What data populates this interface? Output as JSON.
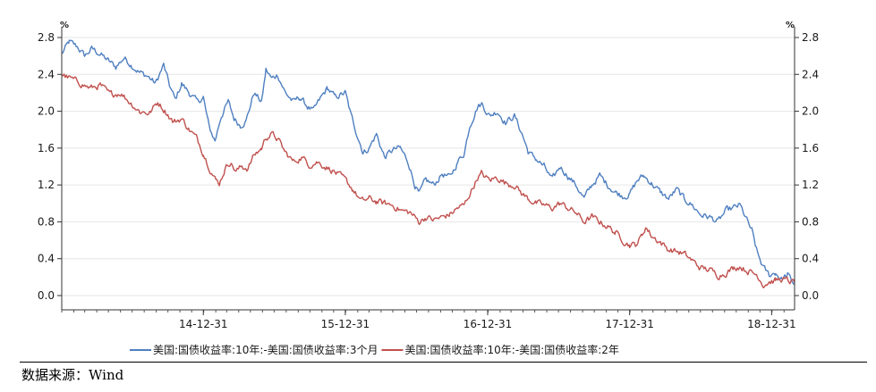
{
  "chart_data": {
    "type": "line",
    "y_unit_left": "%",
    "y_unit_right": "%",
    "ylim": [
      0.0,
      2.8
    ],
    "yticks": [
      "0.0",
      "0.4",
      "0.8",
      "1.2",
      "1.6",
      "2.0",
      "2.4",
      "2.8"
    ],
    "ytick_values": [
      0.0,
      0.4,
      0.8,
      1.2,
      1.6,
      2.0,
      2.4,
      2.8
    ],
    "xlim": [
      "2014-01-01",
      "2019-02-28"
    ],
    "xticks": [
      "14-12-31",
      "15-12-31",
      "16-12-31",
      "17-12-31",
      "18-12-31"
    ],
    "xtick_dates": [
      "2014-12-31",
      "2015-12-31",
      "2016-12-31",
      "2017-12-31",
      "2018-12-31"
    ],
    "grid": true,
    "legend_position": "bottom",
    "series": [
      {
        "name": "美国:国债收益率:10年:-美国:国债收益率:3个月",
        "color": "#4f7fc0",
        "points": [
          [
            "2014-01-01",
            2.62
          ],
          [
            "2014-01-20",
            2.75
          ],
          [
            "2014-02-10",
            2.7
          ],
          [
            "2014-03-01",
            2.6
          ],
          [
            "2014-03-20",
            2.68
          ],
          [
            "2014-04-10",
            2.62
          ],
          [
            "2014-04-30",
            2.55
          ],
          [
            "2014-05-20",
            2.48
          ],
          [
            "2014-06-10",
            2.58
          ],
          [
            "2014-06-30",
            2.5
          ],
          [
            "2014-07-20",
            2.42
          ],
          [
            "2014-08-10",
            2.38
          ],
          [
            "2014-08-30",
            2.3
          ],
          [
            "2014-09-20",
            2.5
          ],
          [
            "2014-10-05",
            2.28
          ],
          [
            "2014-10-20",
            2.12
          ],
          [
            "2014-11-05",
            2.3
          ],
          [
            "2014-11-25",
            2.2
          ],
          [
            "2014-12-15",
            2.1
          ],
          [
            "2014-12-31",
            2.15
          ],
          [
            "2015-01-15",
            1.82
          ],
          [
            "2015-01-30",
            1.68
          ],
          [
            "2015-02-15",
            1.95
          ],
          [
            "2015-03-05",
            2.1
          ],
          [
            "2015-03-20",
            1.92
          ],
          [
            "2015-04-05",
            1.85
          ],
          [
            "2015-04-20",
            1.9
          ],
          [
            "2015-05-10",
            2.2
          ],
          [
            "2015-05-30",
            2.1
          ],
          [
            "2015-06-10",
            2.45
          ],
          [
            "2015-06-25",
            2.35
          ],
          [
            "2015-07-10",
            2.4
          ],
          [
            "2015-07-30",
            2.2
          ],
          [
            "2015-08-20",
            2.1
          ],
          [
            "2015-09-05",
            2.15
          ],
          [
            "2015-09-25",
            2.05
          ],
          [
            "2015-10-10",
            2.0
          ],
          [
            "2015-10-30",
            2.15
          ],
          [
            "2015-11-15",
            2.25
          ],
          [
            "2015-12-05",
            2.15
          ],
          [
            "2015-12-31",
            2.2
          ],
          [
            "2016-01-15",
            1.95
          ],
          [
            "2016-02-05",
            1.68
          ],
          [
            "2016-02-15",
            1.55
          ],
          [
            "2016-03-01",
            1.6
          ],
          [
            "2016-03-20",
            1.75
          ],
          [
            "2016-04-10",
            1.5
          ],
          [
            "2016-05-01",
            1.58
          ],
          [
            "2016-05-20",
            1.6
          ],
          [
            "2016-06-10",
            1.45
          ],
          [
            "2016-06-27",
            1.2
          ],
          [
            "2016-07-08",
            1.1
          ],
          [
            "2016-07-25",
            1.25
          ],
          [
            "2016-08-15",
            1.2
          ],
          [
            "2016-09-05",
            1.32
          ],
          [
            "2016-09-25",
            1.28
          ],
          [
            "2016-10-15",
            1.45
          ],
          [
            "2016-11-01",
            1.55
          ],
          [
            "2016-11-15",
            1.85
          ],
          [
            "2016-12-05",
            2.05
          ],
          [
            "2016-12-16",
            2.08
          ],
          [
            "2017-01-05",
            1.95
          ],
          [
            "2017-01-25",
            2.0
          ],
          [
            "2017-02-15",
            1.88
          ],
          [
            "2017-03-10",
            1.95
          ],
          [
            "2017-03-30",
            1.75
          ],
          [
            "2017-04-15",
            1.55
          ],
          [
            "2017-05-05",
            1.48
          ],
          [
            "2017-05-25",
            1.4
          ],
          [
            "2017-06-15",
            1.25
          ],
          [
            "2017-07-05",
            1.4
          ],
          [
            "2017-07-25",
            1.3
          ],
          [
            "2017-08-15",
            1.2
          ],
          [
            "2017-09-05",
            1.05
          ],
          [
            "2017-09-25",
            1.2
          ],
          [
            "2017-10-15",
            1.3
          ],
          [
            "2017-11-05",
            1.2
          ],
          [
            "2017-11-25",
            1.12
          ],
          [
            "2017-12-15",
            1.08
          ],
          [
            "2017-12-31",
            1.1
          ],
          [
            "2018-01-20",
            1.25
          ],
          [
            "2018-02-05",
            1.3
          ],
          [
            "2018-02-25",
            1.22
          ],
          [
            "2018-03-20",
            1.12
          ],
          [
            "2018-04-10",
            1.05
          ],
          [
            "2018-05-01",
            1.15
          ],
          [
            "2018-05-20",
            1.05
          ],
          [
            "2018-06-10",
            0.98
          ],
          [
            "2018-07-01",
            0.88
          ],
          [
            "2018-07-25",
            0.85
          ],
          [
            "2018-08-15",
            0.8
          ],
          [
            "2018-09-05",
            0.92
          ],
          [
            "2018-09-25",
            0.95
          ],
          [
            "2018-10-10",
            0.98
          ],
          [
            "2018-10-25",
            0.85
          ],
          [
            "2018-11-10",
            0.7
          ],
          [
            "2018-11-25",
            0.45
          ],
          [
            "2018-12-10",
            0.3
          ],
          [
            "2018-12-25",
            0.22
          ],
          [
            "2019-01-10",
            0.25
          ],
          [
            "2019-01-25",
            0.18
          ],
          [
            "2019-02-10",
            0.22
          ],
          [
            "2019-02-28",
            0.12
          ]
        ]
      },
      {
        "name": "美国:国债收益率:10年:-美国:国债收益率:2年",
        "color": "#c0504d",
        "points": [
          [
            "2014-01-01",
            2.4
          ],
          [
            "2014-01-25",
            2.35
          ],
          [
            "2014-02-20",
            2.3
          ],
          [
            "2014-03-15",
            2.25
          ],
          [
            "2014-04-10",
            2.28
          ],
          [
            "2014-05-05",
            2.18
          ],
          [
            "2014-06-01",
            2.2
          ],
          [
            "2014-06-25",
            2.1
          ],
          [
            "2014-07-20",
            2.0
          ],
          [
            "2014-08-15",
            1.98
          ],
          [
            "2014-09-05",
            2.1
          ],
          [
            "2014-09-25",
            2.0
          ],
          [
            "2014-10-15",
            1.88
          ],
          [
            "2014-11-05",
            1.92
          ],
          [
            "2014-11-25",
            1.8
          ],
          [
            "2014-12-15",
            1.7
          ],
          [
            "2014-12-31",
            1.55
          ],
          [
            "2015-01-15",
            1.4
          ],
          [
            "2015-02-01",
            1.25
          ],
          [
            "2015-02-10",
            1.22
          ],
          [
            "2015-02-25",
            1.38
          ],
          [
            "2015-03-10",
            1.45
          ],
          [
            "2015-03-25",
            1.35
          ],
          [
            "2015-04-10",
            1.4
          ],
          [
            "2015-04-25",
            1.38
          ],
          [
            "2015-05-10",
            1.52
          ],
          [
            "2015-05-30",
            1.6
          ],
          [
            "2015-06-10",
            1.72
          ],
          [
            "2015-06-25",
            1.75
          ],
          [
            "2015-07-10",
            1.7
          ],
          [
            "2015-07-30",
            1.55
          ],
          [
            "2015-08-20",
            1.45
          ],
          [
            "2015-09-10",
            1.5
          ],
          [
            "2015-09-30",
            1.42
          ],
          [
            "2015-10-20",
            1.45
          ],
          [
            "2015-11-10",
            1.4
          ],
          [
            "2015-12-01",
            1.35
          ],
          [
            "2015-12-31",
            1.25
          ],
          [
            "2016-01-20",
            1.15
          ],
          [
            "2016-02-10",
            1.02
          ],
          [
            "2016-03-01",
            1.05
          ],
          [
            "2016-03-20",
            1.02
          ],
          [
            "2016-04-10",
            1.0
          ],
          [
            "2016-05-01",
            0.98
          ],
          [
            "2016-05-25",
            0.92
          ],
          [
            "2016-06-15",
            0.9
          ],
          [
            "2016-07-08",
            0.8
          ],
          [
            "2016-07-25",
            0.85
          ],
          [
            "2016-08-15",
            0.82
          ],
          [
            "2016-09-05",
            0.85
          ],
          [
            "2016-09-25",
            0.88
          ],
          [
            "2016-10-15",
            0.95
          ],
          [
            "2016-11-01",
            0.98
          ],
          [
            "2016-11-20",
            1.15
          ],
          [
            "2016-12-05",
            1.28
          ],
          [
            "2016-12-15",
            1.32
          ],
          [
            "2017-01-05",
            1.25
          ],
          [
            "2017-01-25",
            1.28
          ],
          [
            "2017-02-15",
            1.22
          ],
          [
            "2017-03-10",
            1.2
          ],
          [
            "2017-03-30",
            1.1
          ],
          [
            "2017-04-15",
            1.05
          ],
          [
            "2017-05-05",
            1.0
          ],
          [
            "2017-05-25",
            0.98
          ],
          [
            "2017-06-15",
            0.95
          ],
          [
            "2017-07-05",
            1.0
          ],
          [
            "2017-07-25",
            0.95
          ],
          [
            "2017-08-15",
            0.9
          ],
          [
            "2017-09-05",
            0.8
          ],
          [
            "2017-09-25",
            0.85
          ],
          [
            "2017-10-15",
            0.8
          ],
          [
            "2017-11-05",
            0.75
          ],
          [
            "2017-11-25",
            0.68
          ],
          [
            "2017-12-15",
            0.6
          ],
          [
            "2017-12-31",
            0.55
          ],
          [
            "2018-01-15",
            0.55
          ],
          [
            "2018-02-01",
            0.65
          ],
          [
            "2018-02-10",
            0.75
          ],
          [
            "2018-02-25",
            0.65
          ],
          [
            "2018-03-20",
            0.58
          ],
          [
            "2018-04-10",
            0.5
          ],
          [
            "2018-05-01",
            0.48
          ],
          [
            "2018-05-20",
            0.45
          ],
          [
            "2018-06-10",
            0.38
          ],
          [
            "2018-07-01",
            0.3
          ],
          [
            "2018-07-25",
            0.28
          ],
          [
            "2018-08-15",
            0.22
          ],
          [
            "2018-09-05",
            0.25
          ],
          [
            "2018-09-25",
            0.3
          ],
          [
            "2018-10-10",
            0.32
          ],
          [
            "2018-10-25",
            0.28
          ],
          [
            "2018-11-10",
            0.25
          ],
          [
            "2018-11-25",
            0.22
          ],
          [
            "2018-12-10",
            0.12
          ],
          [
            "2018-12-25",
            0.15
          ],
          [
            "2019-01-10",
            0.16
          ],
          [
            "2019-01-25",
            0.18
          ],
          [
            "2019-02-10",
            0.16
          ],
          [
            "2019-02-28",
            0.14
          ]
        ]
      }
    ]
  },
  "source_note": "数据来源：Wind"
}
